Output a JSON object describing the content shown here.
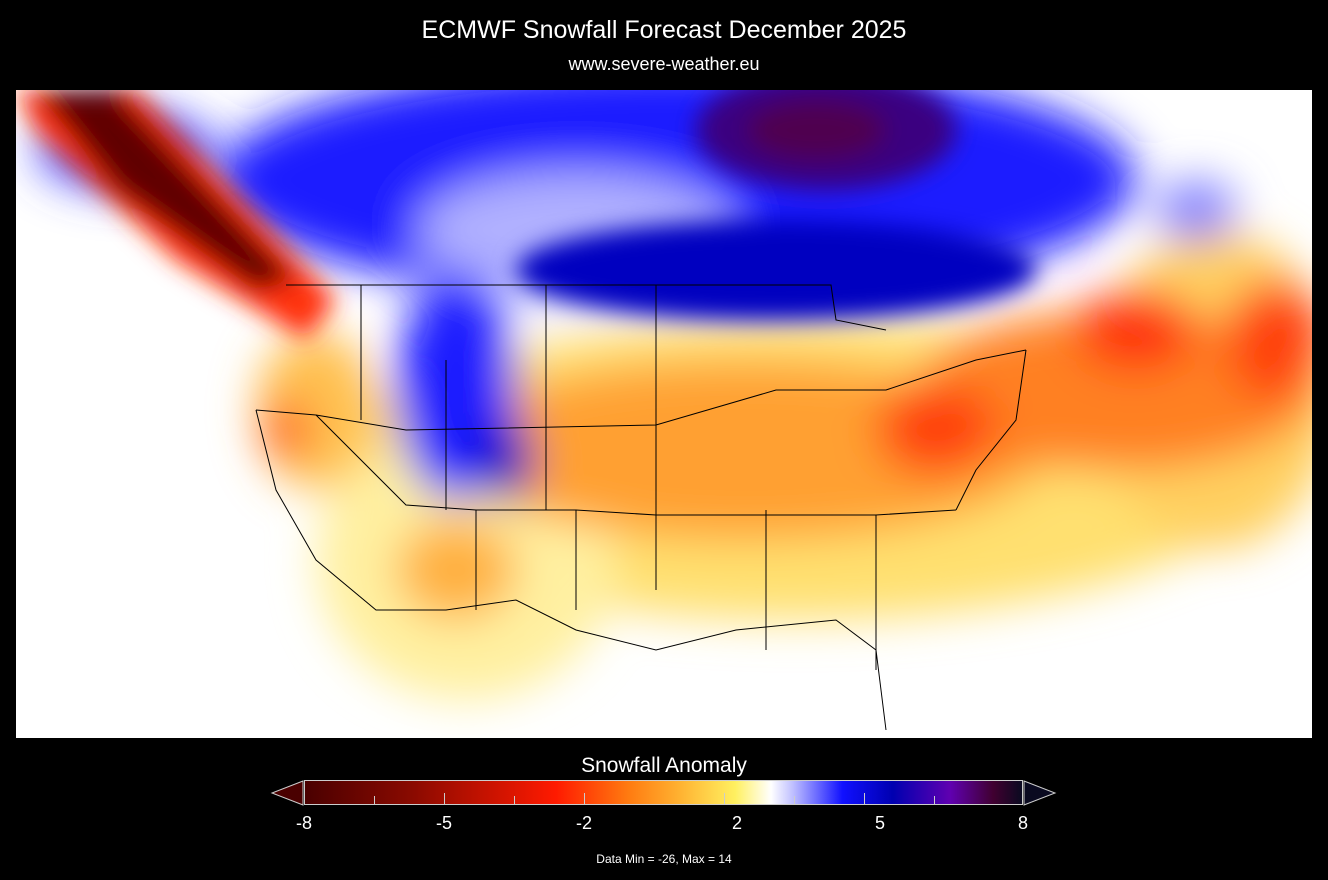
{
  "header": {
    "title": "ECMWF Snowfall Forecast  December 2025",
    "subtitle": "www.severe-weather.eu"
  },
  "map": {
    "region": "North America",
    "variable": "Snowfall Anomaly"
  },
  "colorbar": {
    "title": "Snowfall Anomaly",
    "tick_labels": [
      "-8",
      "-5",
      "-2",
      "2",
      "5",
      "8"
    ],
    "range": [
      -8,
      8
    ],
    "colors": [
      "#4a0000",
      "#8a0a00",
      "#ff1a00",
      "#ff7a10",
      "#fff060",
      "#ffffff",
      "#1010ff",
      "#0000b0",
      "#6000b0",
      "#0a0a20"
    ],
    "extend": "both"
  },
  "footer": {
    "data_range": "Data Min = -26, Max = 14"
  }
}
